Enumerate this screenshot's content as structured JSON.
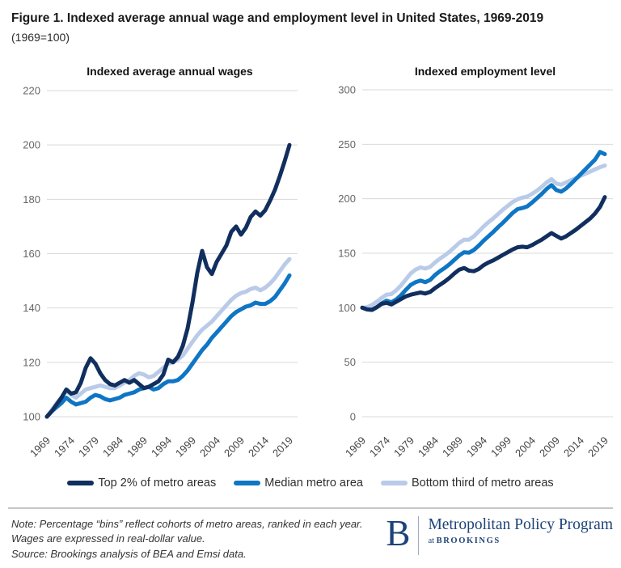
{
  "figure": {
    "title": "Figure 1. Indexed average annual wage and employment level in United States, 1969-2019",
    "subtitle": "(1969=100)"
  },
  "colors": {
    "top2": "#112f5e",
    "median": "#0e76c4",
    "bottom_third": "#b9cbe8",
    "gridline": "#d9d9d9",
    "logo_navy": "#1e4377"
  },
  "legend": {
    "items": [
      {
        "label": "Top 2% of metro areas",
        "color": "#112f5e"
      },
      {
        "label": "Median metro area",
        "color": "#0e76c4"
      },
      {
        "label": "Bottom third of metro areas",
        "color": "#b9cbe8"
      }
    ]
  },
  "footer": {
    "note": "Note: Percentage “bins” reflect cohorts of metro areas, ranked in each year. Wages are expressed in real-dollar value.",
    "source": "Source: Brookings analysis of BEA and Emsi data.",
    "logo_letter": "B",
    "logo_program": "Metropolitan Policy Program",
    "logo_at": "at",
    "logo_brookings": "BROOKINGS"
  },
  "chart_data": [
    {
      "type": "line",
      "title": "Indexed average annual wages",
      "xlim": [
        1969,
        2019
      ],
      "ylim": [
        100,
        220
      ],
      "x_ticks": [
        1969,
        1974,
        1979,
        1984,
        1989,
        1994,
        1999,
        2004,
        2009,
        2014,
        2019
      ],
      "y_ticks": [
        100,
        120,
        140,
        160,
        180,
        200,
        220
      ],
      "grid": true,
      "legend_position": "bottom",
      "x_step_years": 1,
      "series": [
        {
          "name": "Top 2% of metro areas",
          "color": "#112f5e",
          "values": [
            100,
            102,
            104.5,
            107,
            110,
            108.5,
            109,
            112.5,
            118,
            121.5,
            119.5,
            116,
            113.5,
            112,
            111.5,
            112.5,
            113.5,
            112.5,
            113.5,
            112,
            110.5,
            111,
            112,
            113,
            115.5,
            121,
            120,
            122,
            126,
            132.5,
            142,
            153,
            161,
            155,
            152.5,
            157,
            160,
            163,
            168,
            170,
            167,
            169.5,
            173.5,
            175.5,
            174,
            176,
            179.5,
            183.5,
            188.5,
            194,
            200
          ]
        },
        {
          "name": "Median metro area",
          "color": "#0e76c4",
          "values": [
            100,
            102,
            103.5,
            105,
            107,
            105.5,
            104.5,
            105,
            105.5,
            107,
            108,
            107.5,
            106.5,
            106,
            106.5,
            107,
            108,
            108.5,
            109,
            110,
            110.5,
            111,
            110,
            110.5,
            112,
            113,
            113,
            113.5,
            115,
            117,
            119.5,
            122,
            124.5,
            126.5,
            129,
            131,
            133,
            135,
            137,
            138.5,
            139.5,
            140.5,
            141,
            142,
            141.5,
            141.5,
            142.5,
            144,
            146.5,
            149,
            152
          ]
        },
        {
          "name": "Bottom third of metro areas",
          "color": "#b9cbe8",
          "values": [
            100,
            102.5,
            105,
            107,
            109.5,
            108,
            107,
            108.5,
            110,
            110.5,
            111,
            111.5,
            111,
            110.5,
            110.5,
            111.5,
            112.5,
            113.5,
            115,
            116,
            115.5,
            114.5,
            115,
            116.5,
            118,
            119.5,
            120,
            121,
            122.5,
            125,
            127.5,
            130,
            132,
            133.5,
            135,
            137,
            139,
            141,
            143,
            144.5,
            145.5,
            146,
            147,
            147.5,
            146.5,
            147.5,
            149,
            151,
            153.5,
            156,
            158
          ]
        }
      ]
    },
    {
      "type": "line",
      "title": "Indexed employment level",
      "xlim": [
        1969,
        2019
      ],
      "ylim": [
        0,
        300
      ],
      "x_ticks": [
        1969,
        1974,
        1979,
        1984,
        1989,
        1994,
        1999,
        2004,
        2009,
        2014,
        2019
      ],
      "y_ticks": [
        0,
        50,
        100,
        150,
        200,
        250,
        300
      ],
      "grid": true,
      "legend_position": "bottom",
      "x_step_years": 1,
      "series": [
        {
          "name": "Top 2% of metro areas",
          "color": "#112f5e",
          "values": [
            100,
            98.5,
            98,
            100.5,
            103.5,
            104.5,
            103,
            105.5,
            108,
            110.5,
            112,
            113,
            114,
            113,
            114.5,
            118,
            121,
            124,
            127.5,
            131.5,
            135,
            136.5,
            134,
            133.5,
            135.5,
            139,
            141.5,
            143.5,
            146,
            148.5,
            151,
            153.5,
            155.5,
            156,
            155.5,
            157.5,
            160,
            162.5,
            165.5,
            168.5,
            166,
            163.5,
            165.5,
            168.5,
            171.5,
            175,
            178.5,
            182,
            186.5,
            192.5,
            201.5
          ]
        },
        {
          "name": "Median metro area",
          "color": "#0e76c4",
          "values": [
            100,
            98.5,
            98,
            100.5,
            104,
            106.5,
            105,
            107.5,
            111.5,
            116.5,
            121,
            123.5,
            125,
            123.5,
            125.5,
            130,
            133.5,
            136.5,
            140,
            144,
            148,
            151,
            150.5,
            153,
            157,
            161.5,
            165.5,
            169.5,
            174,
            178,
            182.5,
            187,
            190.5,
            191.5,
            193,
            196.5,
            200.5,
            204.5,
            209,
            212.5,
            208,
            206.5,
            209.5,
            213.5,
            218,
            222.5,
            227,
            231.5,
            236,
            243,
            241
          ]
        },
        {
          "name": "Bottom third of metro areas",
          "color": "#b9cbe8",
          "values": [
            100,
            100.5,
            102.5,
            105.5,
            109,
            112,
            112.5,
            116,
            120.5,
            126,
            131.5,
            135,
            137,
            136,
            137.5,
            141.5,
            145,
            148,
            151.5,
            155.5,
            159.5,
            162.5,
            162.5,
            165.5,
            170,
            174.5,
            178.5,
            182,
            186,
            190,
            193.5,
            197,
            199.5,
            201,
            202,
            204.5,
            207.5,
            211,
            215,
            218,
            214,
            213,
            215,
            217,
            219,
            221,
            223,
            225,
            227,
            229,
            230.5
          ]
        }
      ]
    }
  ]
}
